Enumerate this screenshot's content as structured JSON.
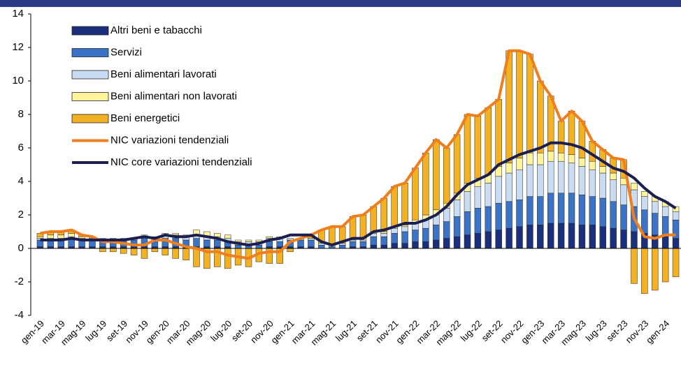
{
  "chart_data": {
    "type": "stacked_bar_line",
    "categories": [
      "gen-19",
      null,
      "mar-19",
      null,
      "mag-19",
      null,
      "lug-19",
      null,
      "set-19",
      null,
      "nov-19",
      null,
      "gen-20",
      null,
      "mar-20",
      null,
      "mag-20",
      null,
      "lug-20",
      null,
      "set-20",
      null,
      "nov-20",
      null,
      "gen-21",
      null,
      "mar-21",
      null,
      "mag-21",
      null,
      "lug-21",
      null,
      "set-21",
      null,
      "nov-21",
      null,
      "gen-22",
      null,
      "mar-22",
      null,
      "mag-22",
      null,
      "lug-22",
      null,
      "set-22",
      null,
      "nov-22",
      null,
      "gen-23",
      null,
      "mar-23",
      null,
      "mag-23",
      null,
      "lug-23",
      null,
      "set-23",
      null,
      "nov-23",
      null,
      "gen-24",
      null
    ],
    "series": [
      {
        "name": "Altri beni e tabacchi",
        "color": "#1c2f7c",
        "kind": "bar",
        "values": [
          0.1,
          0.1,
          0.1,
          0.1,
          0.1,
          0.1,
          0.1,
          0.1,
          0.1,
          0.1,
          0.1,
          0.1,
          0.1,
          0.1,
          0.1,
          0.1,
          0.1,
          0.1,
          0.1,
          0.0,
          0.0,
          0.0,
          0.1,
          0.1,
          0.1,
          0.1,
          0.1,
          0.0,
          0.0,
          0.0,
          0.1,
          0.1,
          0.2,
          0.2,
          0.3,
          0.3,
          0.4,
          0.4,
          0.5,
          0.6,
          0.7,
          0.8,
          0.9,
          1.0,
          1.1,
          1.2,
          1.3,
          1.4,
          1.4,
          1.5,
          1.5,
          1.5,
          1.4,
          1.4,
          1.3,
          1.2,
          1.1,
          1.0,
          0.9,
          0.8,
          0.7,
          0.6
        ]
      },
      {
        "name": "Servizi",
        "color": "#3b73c6",
        "kind": "bar",
        "values": [
          0.4,
          0.4,
          0.4,
          0.5,
          0.4,
          0.4,
          0.4,
          0.4,
          0.4,
          0.4,
          0.5,
          0.4,
          0.5,
          0.5,
          0.4,
          0.5,
          0.4,
          0.4,
          0.3,
          0.2,
          0.2,
          0.2,
          0.3,
          0.3,
          0.4,
          0.4,
          0.4,
          0.2,
          0.1,
          0.2,
          0.3,
          0.3,
          0.5,
          0.5,
          0.6,
          0.7,
          0.7,
          0.8,
          0.9,
          1.0,
          1.2,
          1.4,
          1.5,
          1.5,
          1.6,
          1.6,
          1.6,
          1.7,
          1.7,
          1.8,
          1.8,
          1.8,
          1.8,
          1.7,
          1.7,
          1.6,
          1.5,
          1.5,
          1.4,
          1.3,
          1.2,
          1.1
        ]
      },
      {
        "name": "Beni alimentari lavorati",
        "color": "#c9dcf2",
        "kind": "bar",
        "values": [
          0.1,
          0.1,
          0.1,
          0.1,
          0.1,
          0.1,
          0.1,
          0.1,
          0.1,
          0.1,
          0.1,
          0.1,
          0.2,
          0.2,
          0.2,
          0.2,
          0.2,
          0.2,
          0.2,
          0.2,
          0.2,
          0.2,
          0.2,
          0.2,
          0.1,
          0.1,
          0.1,
          0.1,
          0.1,
          0.1,
          0.1,
          0.1,
          0.2,
          0.2,
          0.3,
          0.3,
          0.4,
          0.5,
          0.6,
          0.8,
          1.0,
          1.2,
          1.3,
          1.4,
          1.6,
          1.7,
          1.8,
          1.9,
          1.9,
          1.9,
          1.9,
          1.8,
          1.7,
          1.6,
          1.5,
          1.3,
          1.2,
          1.0,
          0.8,
          0.7,
          0.6,
          0.5
        ]
      },
      {
        "name": "Beni alimentari non lavorati",
        "color": "#fff39c",
        "kind": "bar",
        "values": [
          0.1,
          0.2,
          0.2,
          0.2,
          0.1,
          0.1,
          0.0,
          0.0,
          0.0,
          0.0,
          0.1,
          0.1,
          0.1,
          0.1,
          0.1,
          0.3,
          0.3,
          0.2,
          0.2,
          0.1,
          0.1,
          0.1,
          0.1,
          0.1,
          0.0,
          0.0,
          0.0,
          0.0,
          0.0,
          0.0,
          0.1,
          0.1,
          0.1,
          0.1,
          0.1,
          0.1,
          0.2,
          0.3,
          0.3,
          0.3,
          0.4,
          0.5,
          0.5,
          0.5,
          0.6,
          0.6,
          0.7,
          0.7,
          0.7,
          0.6,
          0.5,
          0.5,
          0.5,
          0.5,
          0.4,
          0.4,
          0.4,
          0.4,
          0.3,
          0.3,
          0.3,
          0.3
        ]
      },
      {
        "name": "Beni energetici",
        "color": "#f4b223",
        "kind": "bar",
        "values": [
          0.2,
          0.2,
          0.2,
          0.2,
          0.1,
          0.0,
          -0.2,
          -0.2,
          -0.3,
          -0.4,
          -0.6,
          -0.2,
          -0.4,
          -0.6,
          -0.7,
          -1.1,
          -1.2,
          -1.1,
          -1.2,
          -1.0,
          -1.1,
          -0.8,
          -0.9,
          -0.9,
          -0.2,
          0.0,
          0.2,
          0.8,
          1.1,
          1.0,
          1.3,
          1.4,
          1.5,
          2.0,
          2.4,
          2.5,
          3.1,
          3.7,
          4.2,
          3.3,
          3.5,
          4.1,
          3.7,
          4.0,
          4.0,
          6.7,
          6.4,
          5.9,
          4.3,
          3.3,
          1.9,
          2.6,
          2.2,
          1.2,
          1.0,
          0.9,
          1.1,
          -2.1,
          -2.7,
          -2.5,
          -2.0,
          -1.7
        ]
      },
      {
        "name": "NIC variazioni tendenziali",
        "color": "#f07e1c",
        "kind": "line",
        "values": [
          0.9,
          1.0,
          1.0,
          1.1,
          0.8,
          0.7,
          0.4,
          0.4,
          0.3,
          0.2,
          0.2,
          0.5,
          0.5,
          0.3,
          0.1,
          0.0,
          -0.2,
          -0.2,
          -0.4,
          -0.5,
          -0.6,
          -0.3,
          -0.2,
          -0.2,
          0.4,
          0.6,
          0.8,
          1.1,
          1.3,
          1.3,
          1.9,
          2.0,
          2.5,
          3.0,
          3.7,
          3.9,
          4.8,
          5.7,
          6.5,
          6.0,
          6.8,
          8.0,
          7.9,
          8.4,
          8.9,
          11.8,
          11.8,
          11.6,
          10.0,
          9.1,
          7.6,
          8.2,
          7.6,
          6.4,
          5.9,
          5.4,
          5.3,
          1.8,
          0.7,
          0.6,
          0.8,
          0.8
        ]
      },
      {
        "name": "NIC core variazioni tendenziali",
        "color": "#1a1f4f",
        "kind": "line",
        "values": [
          0.5,
          0.5,
          0.5,
          0.6,
          0.5,
          0.5,
          0.5,
          0.5,
          0.5,
          0.6,
          0.7,
          0.6,
          0.8,
          0.7,
          0.7,
          0.8,
          0.7,
          0.6,
          0.4,
          0.3,
          0.2,
          0.3,
          0.5,
          0.6,
          0.8,
          0.8,
          0.8,
          0.4,
          0.2,
          0.4,
          0.6,
          0.6,
          1.0,
          1.1,
          1.3,
          1.5,
          1.5,
          1.7,
          2.0,
          2.5,
          3.2,
          3.8,
          4.1,
          4.4,
          5.0,
          5.3,
          5.6,
          5.8,
          6.0,
          6.3,
          6.3,
          6.2,
          6.0,
          5.6,
          5.2,
          4.8,
          4.6,
          4.2,
          3.6,
          3.1,
          2.8,
          2.4
        ]
      }
    ],
    "ylim": [
      -4,
      14
    ],
    "yticks": [
      -4,
      -2,
      0,
      2,
      4,
      6,
      8,
      10,
      12,
      14
    ]
  }
}
